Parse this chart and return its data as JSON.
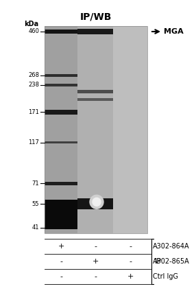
{
  "title": "IP/WB",
  "title_fontsize": 10,
  "kda_label": "kDa",
  "mw_markers": [
    460,
    268,
    238,
    171,
    117,
    71,
    55,
    41
  ],
  "arrow_label": "← MGA",
  "fig_bg": "#ffffff",
  "gel_bg": "#c0c0c0",
  "lane1_bg": "#a8a8a8",
  "lane2_bg": "#b5b5b5",
  "lane3_bg": "#c8c8c8",
  "table_rows": [
    [
      "+",
      "-",
      "-",
      "A302-864A"
    ],
    [
      "-",
      "+",
      "-",
      "A302-865A"
    ],
    [
      "-",
      "-",
      "+",
      "Ctrl IgG"
    ]
  ],
  "ip_label": "IP"
}
